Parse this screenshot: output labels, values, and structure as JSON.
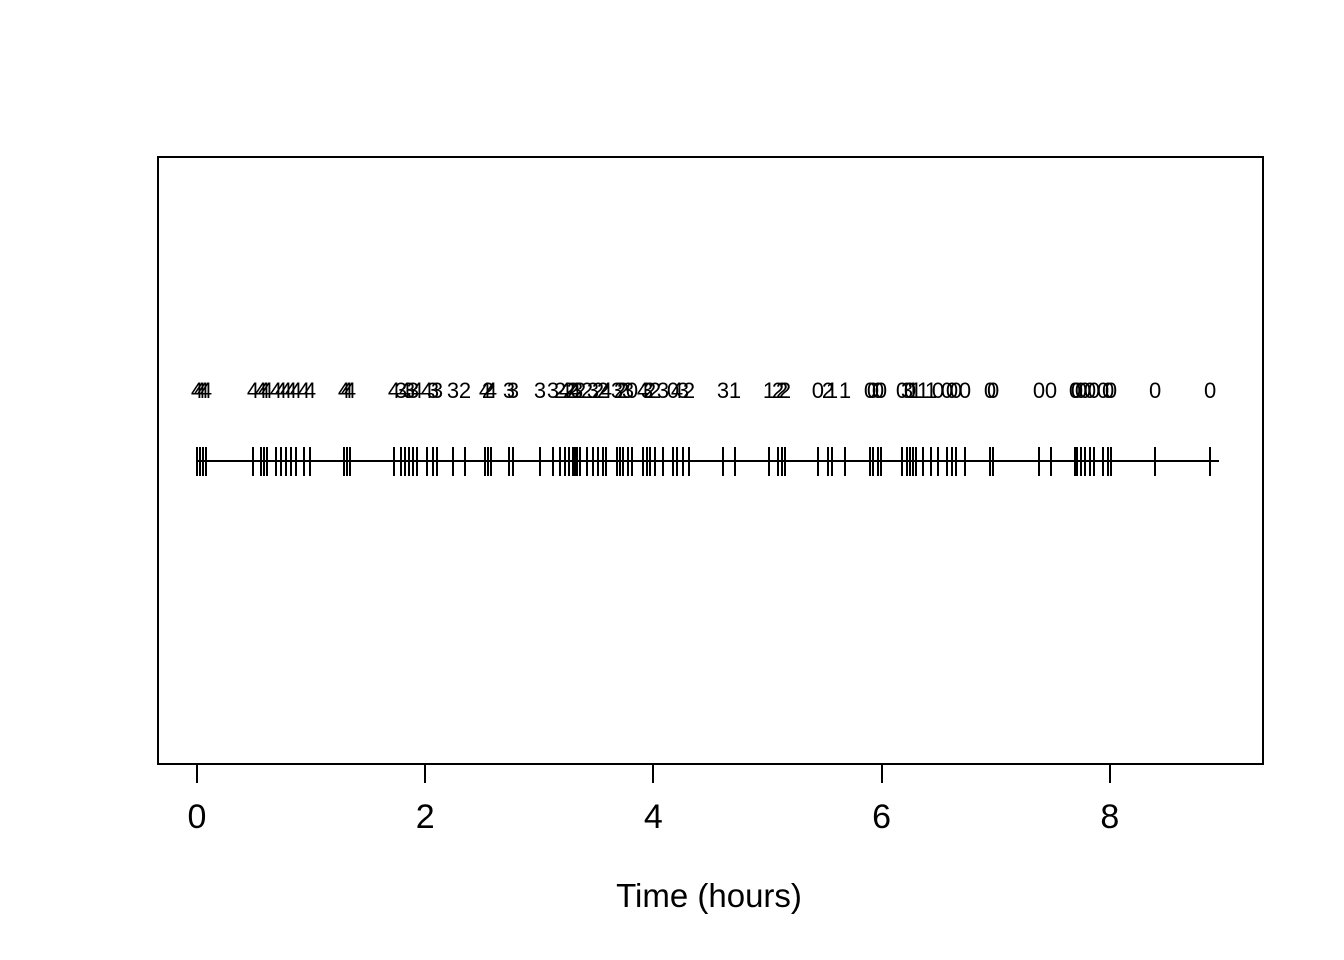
{
  "figure": {
    "background_color": "#ffffff",
    "line_color": "#000000"
  },
  "chart_data": {
    "type": "scatter",
    "subtype": "event-rug-timeline",
    "title": "",
    "xlabel": "Time (hours)",
    "ylabel": "",
    "xlim": [
      0,
      9.3
    ],
    "x_ticks": [
      0,
      2,
      4,
      6,
      8
    ],
    "grid": false,
    "legend": "none",
    "description": "Horizontal event timeline: vertical tick marks on a baseline at each event time, with a count digit printed above each event time.",
    "events": [
      {
        "t": 0.0,
        "label": "4"
      },
      {
        "t": 0.026,
        "label": "4"
      },
      {
        "t": 0.053,
        "label": "4"
      },
      {
        "t": 0.079,
        "label": "4"
      },
      {
        "t": 0.491,
        "label": "4"
      },
      {
        "t": 0.561,
        "label": "4"
      },
      {
        "t": 0.587,
        "label": "4"
      },
      {
        "t": 0.613,
        "label": "4"
      },
      {
        "t": 0.692,
        "label": "4"
      },
      {
        "t": 0.736,
        "label": "4"
      },
      {
        "t": 0.78,
        "label": "4"
      },
      {
        "t": 0.824,
        "label": "4"
      },
      {
        "t": 0.868,
        "label": "4"
      },
      {
        "t": 0.938,
        "label": "4"
      },
      {
        "t": 0.99,
        "label": "4"
      },
      {
        "t": 1.288,
        "label": "4"
      },
      {
        "t": 1.315,
        "label": "4"
      },
      {
        "t": 1.341,
        "label": "4"
      },
      {
        "t": 1.727,
        "label": "4"
      },
      {
        "t": 1.788,
        "label": "3"
      },
      {
        "t": 1.823,
        "label": "4"
      },
      {
        "t": 1.858,
        "label": "3"
      },
      {
        "t": 1.893,
        "label": "3"
      },
      {
        "t": 1.928,
        "label": "4"
      },
      {
        "t": 2.016,
        "label": "4"
      },
      {
        "t": 2.068,
        "label": "3"
      },
      {
        "t": 2.103,
        "label": "3"
      },
      {
        "t": 2.244,
        "label": "3"
      },
      {
        "t": 2.349,
        "label": "2"
      },
      {
        "t": 2.524,
        "label": "4"
      },
      {
        "t": 2.55,
        "label": "2"
      },
      {
        "t": 2.577,
        "label": "4"
      },
      {
        "t": 2.734,
        "label": "3"
      },
      {
        "t": 2.77,
        "label": "3"
      },
      {
        "t": 3.006,
        "label": "3"
      },
      {
        "t": 3.12,
        "label": "3"
      },
      {
        "t": 3.182,
        "label": "2"
      },
      {
        "t": 3.225,
        "label": "4"
      },
      {
        "t": 3.26,
        "label": "2"
      },
      {
        "t": 3.295,
        "label": "2"
      },
      {
        "t": 3.313,
        "label": "4"
      },
      {
        "t": 3.331,
        "label": "3"
      },
      {
        "t": 3.357,
        "label": "2"
      },
      {
        "t": 3.418,
        "label": "2"
      },
      {
        "t": 3.471,
        "label": "3"
      },
      {
        "t": 3.514,
        "label": "2"
      },
      {
        "t": 3.558,
        "label": "2"
      },
      {
        "t": 3.585,
        "label": "4"
      },
      {
        "t": 3.681,
        "label": "3"
      },
      {
        "t": 3.707,
        "label": "2"
      },
      {
        "t": 3.734,
        "label": "2"
      },
      {
        "t": 3.777,
        "label": "3"
      },
      {
        "t": 3.812,
        "label": "0"
      },
      {
        "t": 3.909,
        "label": "4"
      },
      {
        "t": 3.944,
        "label": "3"
      },
      {
        "t": 3.97,
        "label": "2"
      },
      {
        "t": 4.014,
        "label": "2"
      },
      {
        "t": 4.084,
        "label": "3"
      },
      {
        "t": 4.172,
        "label": "0"
      },
      {
        "t": 4.207,
        "label": "4"
      },
      {
        "t": 4.259,
        "label": "3"
      },
      {
        "t": 4.312,
        "label": "2"
      },
      {
        "t": 4.61,
        "label": "3"
      },
      {
        "t": 4.715,
        "label": "1"
      },
      {
        "t": 5.013,
        "label": "1"
      },
      {
        "t": 5.092,
        "label": "2"
      },
      {
        "t": 5.127,
        "label": "2"
      },
      {
        "t": 5.153,
        "label": "2"
      },
      {
        "t": 5.442,
        "label": "0"
      },
      {
        "t": 5.53,
        "label": "2"
      },
      {
        "t": 5.565,
        "label": "1"
      },
      {
        "t": 5.679,
        "label": "1"
      },
      {
        "t": 5.898,
        "label": "0"
      },
      {
        "t": 5.925,
        "label": "0"
      },
      {
        "t": 5.968,
        "label": "0"
      },
      {
        "t": 5.995,
        "label": "0"
      },
      {
        "t": 6.179,
        "label": "0"
      },
      {
        "t": 6.223,
        "label": "3"
      },
      {
        "t": 6.249,
        "label": "0"
      },
      {
        "t": 6.275,
        "label": "1"
      },
      {
        "t": 6.302,
        "label": "1"
      },
      {
        "t": 6.363,
        "label": "1"
      },
      {
        "t": 6.433,
        "label": "1"
      },
      {
        "t": 6.494,
        "label": "0"
      },
      {
        "t": 6.573,
        "label": "0"
      },
      {
        "t": 6.617,
        "label": "0"
      },
      {
        "t": 6.652,
        "label": "0"
      },
      {
        "t": 6.731,
        "label": "0"
      },
      {
        "t": 6.95,
        "label": "0"
      },
      {
        "t": 6.977,
        "label": "0"
      },
      {
        "t": 7.38,
        "label": "0"
      },
      {
        "t": 7.485,
        "label": "0"
      },
      {
        "t": 7.695,
        "label": "0"
      },
      {
        "t": 7.713,
        "label": "0"
      },
      {
        "t": 7.748,
        "label": "0"
      },
      {
        "t": 7.783,
        "label": "0"
      },
      {
        "t": 7.827,
        "label": "0"
      },
      {
        "t": 7.862,
        "label": "0"
      },
      {
        "t": 7.941,
        "label": "0"
      },
      {
        "t": 7.985,
        "label": "0"
      },
      {
        "t": 8.011,
        "label": "0"
      },
      {
        "t": 8.397,
        "label": "0"
      },
      {
        "t": 8.879,
        "label": "0"
      }
    ]
  }
}
